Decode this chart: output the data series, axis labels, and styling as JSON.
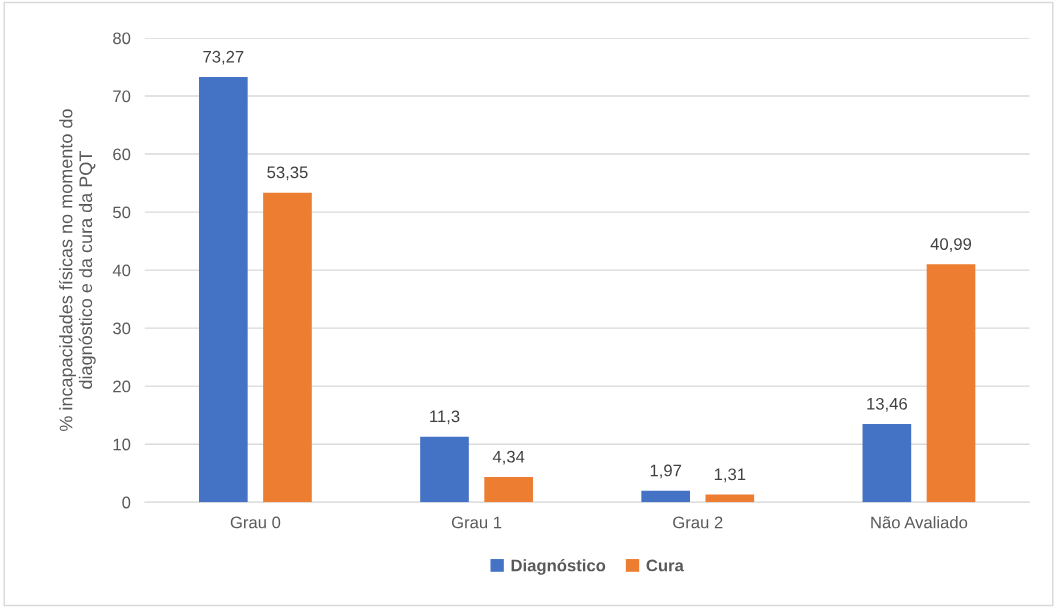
{
  "chart_data": {
    "type": "bar",
    "ylabel": "% incapacidades físicas no momento do\ndiagnóstico e da cura da PQT",
    "categories": [
      "Grau 0",
      "Grau 1",
      "Grau 2",
      "Não Avaliado"
    ],
    "series": [
      {
        "name": "Diagnóstico",
        "color": "#4472c4",
        "values": [
          73.27,
          11.3,
          1.97,
          13.46
        ],
        "value_labels": [
          "73,27",
          "11,3",
          "1,97",
          "13,46"
        ]
      },
      {
        "name": "Cura",
        "color": "#ed7d31",
        "values": [
          53.35,
          4.34,
          1.31,
          40.99
        ],
        "value_labels": [
          "53,35",
          "4,34",
          "1,31",
          "40,99"
        ]
      }
    ],
    "ylim": [
      0,
      80
    ],
    "yticks": [
      0,
      10,
      20,
      30,
      40,
      50,
      60,
      70,
      80
    ],
    "grid": "y",
    "legend": "bottom"
  }
}
